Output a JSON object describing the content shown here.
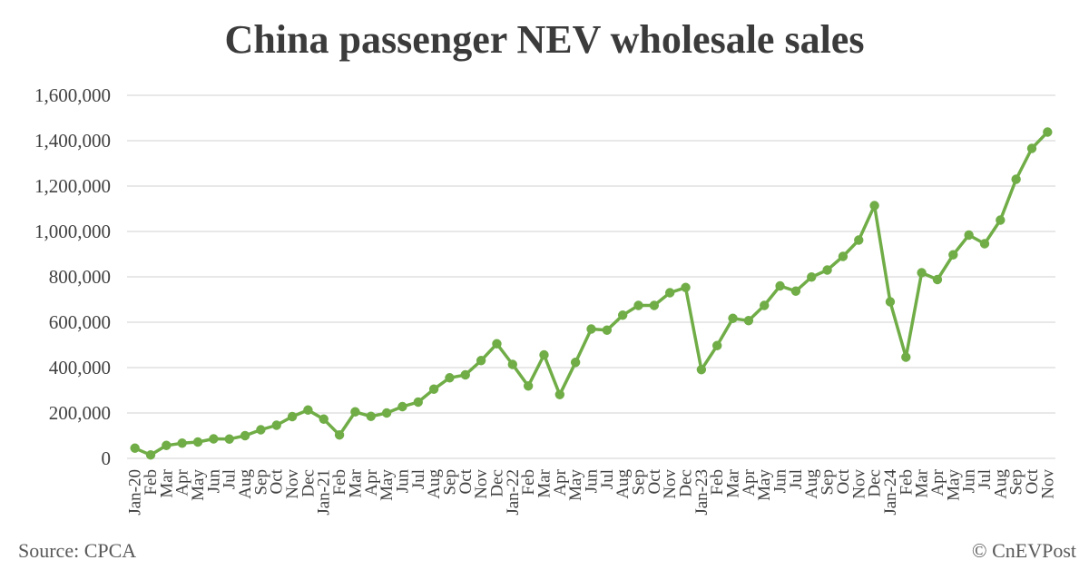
{
  "title": "China passenger NEV wholesale sales",
  "source": "Source: CPCA",
  "credit": "© CnEVPost",
  "colors": {
    "series": "#70ad47",
    "grid": "#d9d9d9",
    "text": "#404040"
  },
  "chart_data": {
    "type": "line",
    "title": "China passenger NEV wholesale sales",
    "xlabel": "",
    "ylabel": "",
    "ylim": [
      0,
      1600000
    ],
    "yticks": [
      0,
      200000,
      400000,
      600000,
      800000,
      1000000,
      1200000,
      1400000,
      1600000
    ],
    "ytick_labels": [
      "0",
      "200,000",
      "400,000",
      "600,000",
      "800,000",
      "1,000,000",
      "1,200,000",
      "1,400,000",
      "1,600,000"
    ],
    "grid": true,
    "legend": "none",
    "categories": [
      "Jan-20",
      "Feb",
      "Mar",
      "Apr",
      "May",
      "Jun",
      "Jul",
      "Aug",
      "Sep",
      "Oct",
      "Nov",
      "Dec",
      "Jan-21",
      "Feb",
      "Mar",
      "Apr",
      "May",
      "Jun",
      "Jul",
      "Aug",
      "Sep",
      "Oct",
      "Nov",
      "Dec",
      "Jan-22",
      "Feb",
      "Mar",
      "Apr",
      "May",
      "Jun",
      "Jul",
      "Aug",
      "Sep",
      "Oct",
      "Nov",
      "Dec",
      "Jan-23",
      "Feb",
      "Mar",
      "Apr",
      "May",
      "Jun",
      "Jul",
      "Aug",
      "Sep",
      "Oct",
      "Nov",
      "Dec",
      "Jan-24",
      "Feb",
      "Mar",
      "Apr",
      "May",
      "Jun",
      "Jul",
      "Aug",
      "Sep",
      "Oct",
      "Nov"
    ],
    "series": [
      {
        "values": [
          45000,
          15000,
          57000,
          67000,
          72000,
          86000,
          85000,
          100000,
          126000,
          146000,
          184000,
          213000,
          173000,
          103000,
          205000,
          185000,
          200000,
          228000,
          248000,
          305000,
          355000,
          368000,
          431000,
          505000,
          414000,
          319000,
          456000,
          281000,
          423000,
          570000,
          565000,
          631000,
          674000,
          674000,
          730000,
          753000,
          391000,
          497000,
          617000,
          607000,
          674000,
          760000,
          737000,
          799000,
          830000,
          890000,
          962000,
          1114000,
          690000,
          446000,
          818000,
          788000,
          897000,
          984000,
          946000,
          1050000,
          1230000,
          1366000,
          1438000
        ]
      }
    ]
  }
}
